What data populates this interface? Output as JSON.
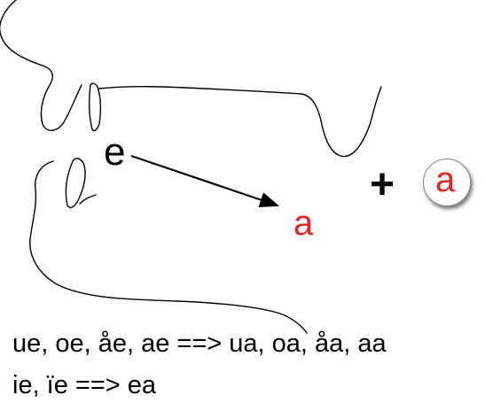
{
  "diagram": {
    "source_vowel": "e",
    "target_vowel": "a",
    "plus_sign": "+",
    "added_vowel": "a",
    "accent_color": "#ee2222",
    "rules": [
      "ue, oe, åe, ae ==> ua, oa, åa, aa",
      "ie, ïe ==> ea"
    ]
  }
}
